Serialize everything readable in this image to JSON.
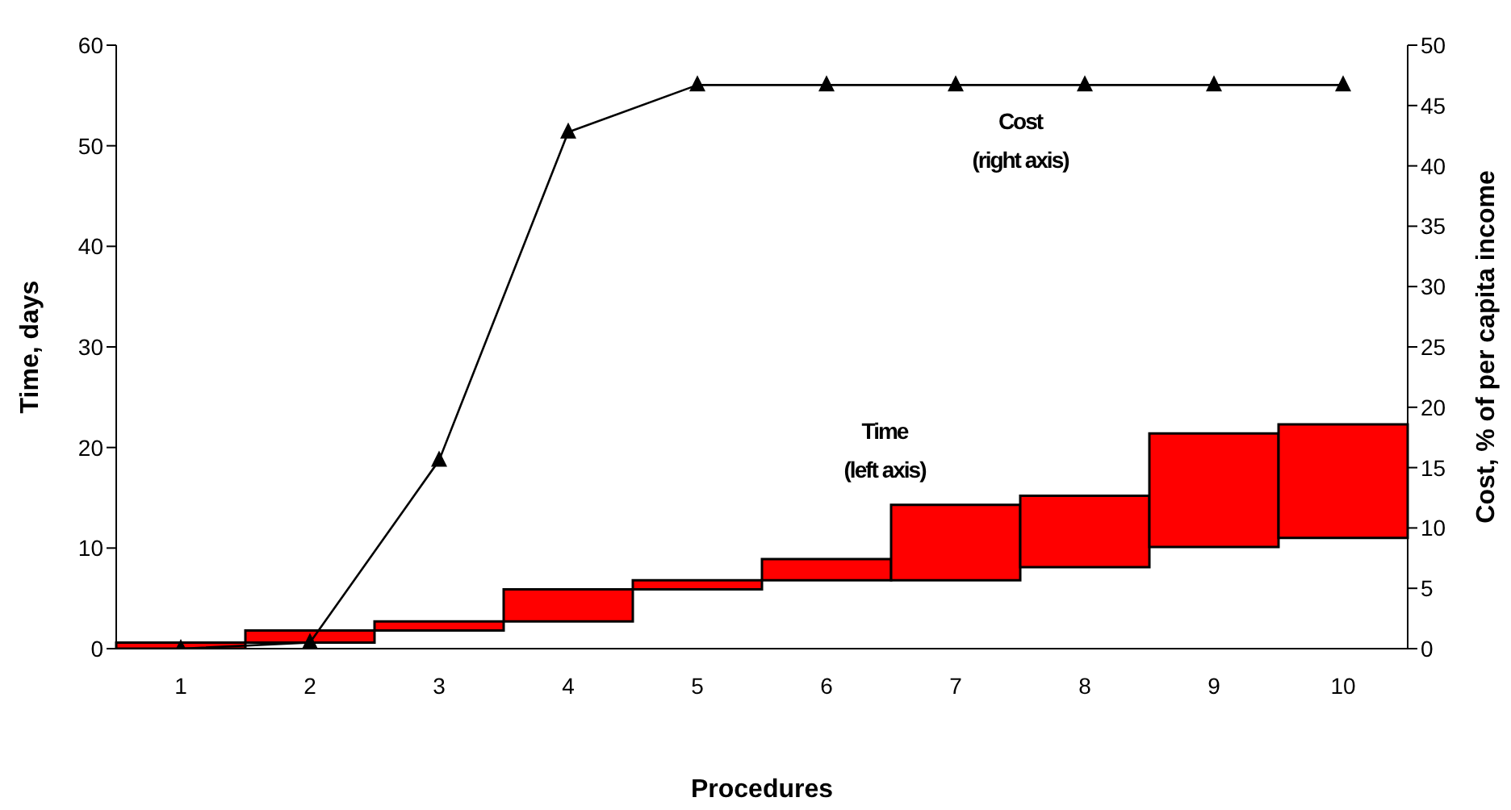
{
  "chart_data": {
    "type": "bar",
    "xlabel": "Procedures",
    "ylabel": "Time, days",
    "y2label": "Cost, % of per capita income",
    "categories": [
      "1",
      "2",
      "3",
      "4",
      "5",
      "6",
      "7",
      "8",
      "9",
      "10"
    ],
    "series": [
      {
        "name": "Time (left axis)",
        "color": "#ff0000",
        "base": [
          0,
          0.6,
          1.8,
          2.7,
          5.9,
          6.8,
          6.8,
          8.1,
          10.1,
          11.0
        ],
        "values": [
          0.6,
          1.2,
          0.9,
          3.2,
          0.9,
          2.1,
          7.5,
          7.1,
          11.3,
          11.3
        ]
      },
      {
        "name": "Cost (right axis)",
        "type": "line",
        "axis": "y2",
        "color": "#000000",
        "marker": "triangle",
        "values": [
          0,
          0.5,
          15.6,
          42.8,
          46.7,
          46.7,
          46.7,
          46.7,
          46.7,
          46.7
        ]
      }
    ],
    "ylim": [
      0,
      60
    ],
    "yticks": [
      0,
      10,
      20,
      30,
      40,
      50,
      60
    ],
    "y2lim": [
      0,
      50
    ],
    "y2ticks": [
      0,
      5,
      10,
      15,
      20,
      25,
      30,
      35,
      40,
      45,
      50
    ],
    "grid": false,
    "legend": false
  }
}
